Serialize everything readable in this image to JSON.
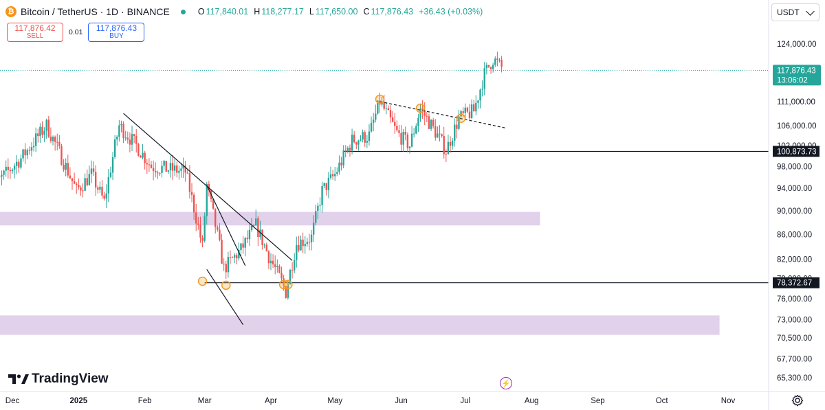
{
  "header": {
    "symbol": "Bitcoin / TetherUS · 1D · BINANCE",
    "logo": "btc-logo",
    "ohlc": {
      "o_label": "O",
      "o": "117,840.01",
      "h_label": "H",
      "h": "118,277.17",
      "l_label": "L",
      "l": "117,650.00",
      "c_label": "C",
      "c": "117,876.43",
      "change": "+36.43 (+0.03%)"
    }
  },
  "trade": {
    "sell_price": "117,876.42",
    "sell_label": "SELL",
    "spread": "0.01",
    "buy_price": "117,876.43",
    "buy_label": "BUY"
  },
  "currency_selector": "USDT",
  "branding": "TradingView",
  "colors": {
    "up": "#26a69a",
    "down": "#ef5350",
    "zone": "#e1d1eb",
    "marker": "#f09a2c",
    "price_tag": "#26a69a"
  },
  "chart_data": {
    "type": "candlestick",
    "interval": "1D",
    "scale": "log",
    "y_ticks": [
      124000,
      111000,
      106000,
      102000,
      98000,
      94000,
      90000,
      86000,
      82000,
      79000,
      76000,
      73000,
      70500,
      67700,
      65300
    ],
    "y_tick_labels": [
      "124,000.00",
      "111,000.00",
      "106,000.00",
      "102,000.00",
      "98,000.00",
      "94,000.00",
      "90,000.00",
      "86,000.00",
      "82,000.00",
      "79,000.00",
      "76,000.00",
      "73,000.00",
      "70,500.00",
      "67,700.00",
      "65,300.00"
    ],
    "x_ticks": [
      {
        "date": "2024-12-01",
        "label": "Dec"
      },
      {
        "date": "2025-01-01",
        "label": "2025"
      },
      {
        "date": "2025-02-01",
        "label": "Feb"
      },
      {
        "date": "2025-03-01",
        "label": "Mar"
      },
      {
        "date": "2025-04-01",
        "label": "Apr"
      },
      {
        "date": "2025-05-01",
        "label": "May"
      },
      {
        "date": "2025-06-01",
        "label": "Jun"
      },
      {
        "date": "2025-07-01",
        "label": "Jul"
      },
      {
        "date": "2025-08-01",
        "label": "Aug"
      },
      {
        "date": "2025-09-01",
        "label": "Sep"
      },
      {
        "date": "2025-10-01",
        "label": "Oct"
      },
      {
        "date": "2025-11-01",
        "label": "Nov"
      }
    ],
    "price_path": [
      [
        "2024-11-20",
        93500
      ],
      [
        "2024-12-05",
        99500
      ],
      [
        "2024-12-17",
        106000
      ],
      [
        "2024-12-31",
        93500
      ],
      [
        "2025-01-07",
        96500
      ],
      [
        "2025-01-13",
        91500
      ],
      [
        "2025-01-20",
        106000
      ],
      [
        "2025-01-28",
        102000
      ],
      [
        "2025-02-04",
        98000
      ],
      [
        "2025-02-20",
        97000
      ],
      [
        "2025-02-28",
        84000
      ],
      [
        "2025-03-02",
        94500
      ],
      [
        "2025-03-10",
        80500
      ],
      [
        "2025-03-18",
        83500
      ],
      [
        "2025-03-25",
        87500
      ],
      [
        "2025-03-31",
        82500
      ],
      [
        "2025-04-06",
        78500
      ],
      [
        "2025-04-08",
        77000
      ],
      [
        "2025-04-13",
        84500
      ],
      [
        "2025-04-20",
        85500
      ],
      [
        "2025-04-25",
        93500
      ],
      [
        "2025-05-01",
        96500
      ],
      [
        "2025-05-09",
        103000
      ],
      [
        "2025-05-17",
        104000
      ],
      [
        "2025-05-22",
        111000
      ],
      [
        "2025-05-30",
        104500
      ],
      [
        "2025-06-05",
        102000
      ],
      [
        "2025-06-10",
        109500
      ],
      [
        "2025-06-18",
        104000
      ],
      [
        "2025-06-22",
        101000
      ],
      [
        "2025-06-28",
        107500
      ],
      [
        "2025-07-05",
        109000
      ],
      [
        "2025-07-10",
        117000
      ],
      [
        "2025-07-14",
        120500
      ],
      [
        "2025-07-18",
        118500
      ]
    ],
    "current_price": {
      "value": 117876.43,
      "label": "117,876.43",
      "countdown": "13:06:02"
    },
    "horizontal_levels": [
      {
        "value": 100873.73,
        "label": "100,873.73",
        "from": "2025-05-05"
      },
      {
        "value": 78372.67,
        "label": "78,372.67",
        "from": "2025-03-01"
      }
    ],
    "zones": [
      {
        "low": 87500,
        "high": 89800,
        "from": "2024-11-20",
        "to": "2025-08-05"
      },
      {
        "low": 70900,
        "high": 73600,
        "from": "2024-11-20",
        "to": "2025-10-28"
      }
    ],
    "trendlines": [
      {
        "from": [
          "2025-01-22",
          108500
        ],
        "to": [
          "2025-04-11",
          81800
        ],
        "style": "solid"
      },
      {
        "from": [
          "2025-03-02",
          94500
        ],
        "to": [
          "2025-03-20",
          81000
        ],
        "style": "solid"
      },
      {
        "from": [
          "2025-03-02",
          80400
        ],
        "to": [
          "2025-03-19",
          72300
        ],
        "style": "solid"
      },
      {
        "from": [
          "2025-05-22",
          111000
        ],
        "to": [
          "2025-07-20",
          105500
        ],
        "style": "dashed"
      }
    ],
    "markers": [
      {
        "date": "2025-02-28",
        "value": 78600
      },
      {
        "date": "2025-03-11",
        "value": 78000
      },
      {
        "date": "2025-04-07",
        "value": 78100
      },
      {
        "date": "2025-04-09",
        "value": 78100
      },
      {
        "date": "2025-05-22",
        "value": 111500
      },
      {
        "date": "2025-06-10",
        "value": 109600
      },
      {
        "date": "2025-06-29",
        "value": 107500
      }
    ]
  }
}
